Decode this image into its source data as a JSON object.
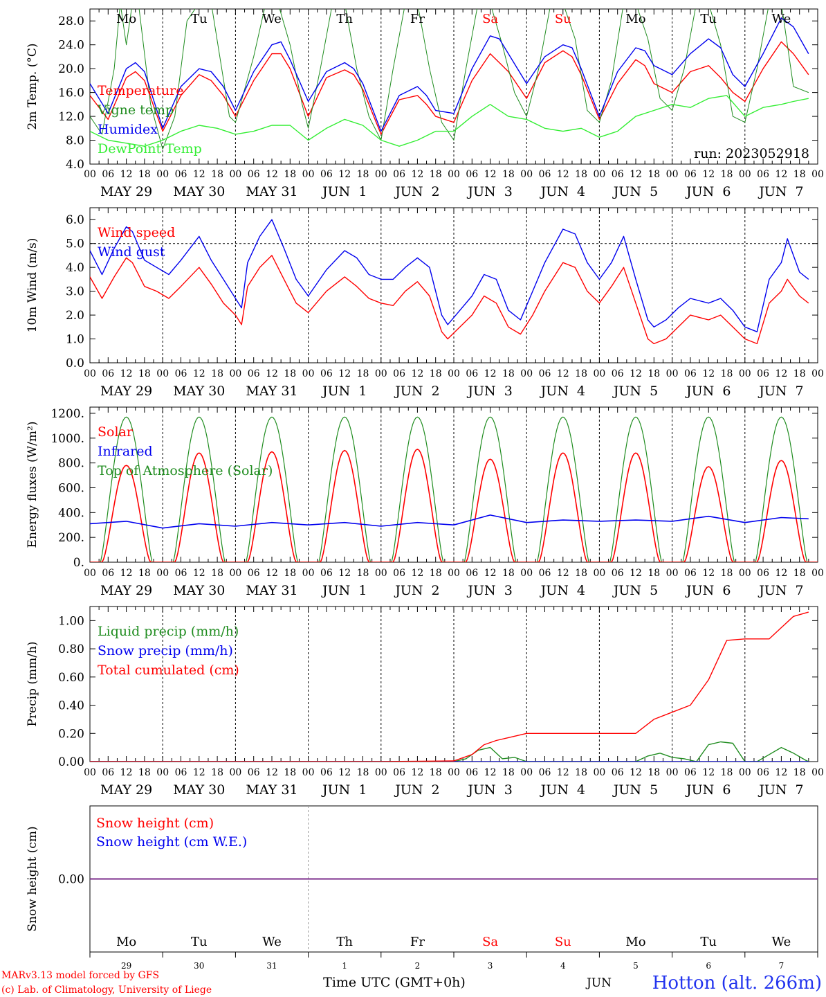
{
  "run_label": "run: 2023052918",
  "x_ticks": [
    "00",
    "06",
    "12",
    "18"
  ],
  "x_final_tick": "00",
  "date_labels": [
    "MAY 29",
    "MAY 30",
    "MAY 31",
    "JUN  1",
    "JUN  2",
    "JUN  3",
    "JUN  4",
    "JUN  5",
    "JUN  6",
    "JUN  7"
  ],
  "day_labels": [
    "Mo",
    "Tu",
    "We",
    "Th",
    "Fr",
    "Sa",
    "Su",
    "Mo",
    "Tu",
    "We"
  ],
  "weekend_days": [
    5,
    6
  ],
  "bottom_day_numbers": [
    "29",
    "30",
    "31",
    "1",
    "2",
    "3",
    "4",
    "5",
    "6",
    "7"
  ],
  "bottom_month": "JUN",
  "xlabel": "Time UTC (GMT+0h)",
  "credit": [
    "MARv3.13 model forced by GFS",
    "(c) Lab. of Climatology, University of Liege"
  ],
  "station": "Hotton (alt. 266m)",
  "colors": {
    "red": "#ff0000",
    "green": "#1f8c1f",
    "blue": "#0000ee",
    "lightgreen": "#33ee33",
    "purple": "#7a2a8a",
    "weekend": "#ff0000"
  },
  "chart_data": [
    {
      "id": "temperature",
      "type": "line",
      "ylabel": "2m Temp. (°C)",
      "ylim": [
        4,
        30
      ],
      "yticks": [
        "4.0",
        "8.0",
        "12.0",
        "16.0",
        "20.0",
        "24.0",
        "28.0"
      ],
      "ytick_values": [
        4,
        8,
        12,
        16,
        20,
        24,
        28
      ],
      "x_unit": "hours since MAY 29 00 UTC",
      "series": [
        {
          "name": "Temperature",
          "color": "red",
          "x": [
            0,
            6,
            12,
            15,
            18,
            24,
            30,
            36,
            40,
            44,
            48,
            54,
            60,
            63,
            66,
            72,
            78,
            84,
            87,
            90,
            96,
            102,
            108,
            111,
            114,
            120,
            126,
            132,
            135,
            138,
            144,
            150,
            156,
            159,
            162,
            168,
            174,
            180,
            183,
            186,
            192,
            198,
            204,
            208,
            212,
            216,
            222,
            228,
            232,
            237
          ],
          "y": [
            15.5,
            11.5,
            18.5,
            19.5,
            18.0,
            9.5,
            15.5,
            19.0,
            18.0,
            15.5,
            12.0,
            18.0,
            22.5,
            22.5,
            20.0,
            12.0,
            18.5,
            19.8,
            19.0,
            16.5,
            9.0,
            14.8,
            15.5,
            14.0,
            12.0,
            11.0,
            18.0,
            22.5,
            21.0,
            19.5,
            15.0,
            21.0,
            23.0,
            22.0,
            19.0,
            11.5,
            17.5,
            21.5,
            20.5,
            17.5,
            16.0,
            19.5,
            20.5,
            18.5,
            16.0,
            14.5,
            20.0,
            24.5,
            22.5,
            19.0
          ]
        },
        {
          "name": "Vigne temp",
          "color": "green",
          "x": [
            0,
            4,
            8,
            10,
            12,
            14,
            16,
            20,
            24,
            28,
            32,
            36,
            40,
            46,
            48,
            54,
            58,
            62,
            66,
            70,
            72,
            76,
            80,
            84,
            88,
            92,
            96,
            100,
            104,
            108,
            112,
            116,
            120,
            124,
            128,
            132,
            136,
            140,
            144,
            148,
            152,
            156,
            160,
            164,
            168,
            172,
            176,
            180,
            184,
            188,
            192,
            196,
            200,
            204,
            208,
            212,
            216,
            220,
            224,
            228,
            232,
            237
          ],
          "y": [
            12,
            9,
            20,
            31,
            24,
            31,
            31,
            14,
            6.5,
            12,
            28,
            31,
            31,
            12,
            11,
            22,
            31,
            31,
            24,
            14,
            10,
            20,
            31,
            31,
            20,
            12,
            8,
            20,
            31,
            31,
            20,
            11,
            8,
            20,
            31,
            31,
            24,
            16,
            12,
            20,
            31,
            31,
            25,
            13,
            11,
            18,
            31,
            31,
            25,
            15,
            13,
            20,
            31,
            31,
            24,
            12,
            11,
            20,
            31,
            31,
            17,
            16
          ]
        },
        {
          "name": "Humidex",
          "color": "blue",
          "x": [
            0,
            6,
            12,
            15,
            18,
            24,
            30,
            36,
            40,
            44,
            48,
            54,
            60,
            63,
            66,
            72,
            78,
            84,
            87,
            90,
            96,
            102,
            108,
            111,
            114,
            120,
            126,
            132,
            135,
            138,
            144,
            150,
            156,
            159,
            162,
            168,
            174,
            180,
            183,
            186,
            192,
            198,
            204,
            208,
            212,
            216,
            222,
            228,
            232,
            237
          ],
          "y": [
            17.5,
            12.5,
            20.0,
            21.0,
            19.5,
            10.0,
            17.0,
            20.0,
            19.5,
            17.0,
            13.0,
            19.5,
            24.0,
            24.5,
            21.5,
            14.5,
            19.5,
            21.0,
            20.0,
            17.5,
            9.5,
            15.5,
            17.0,
            15.5,
            13.0,
            12.5,
            20.0,
            25.5,
            25.0,
            22.5,
            17.5,
            22.0,
            24.0,
            23.5,
            20.0,
            12.0,
            19.5,
            23.5,
            23.0,
            20.5,
            19.0,
            22.5,
            25.0,
            23.5,
            19.0,
            17.0,
            22.5,
            28.5,
            27.0,
            22.5
          ]
        },
        {
          "name": "DewPoint Temp",
          "color": "lightgreen",
          "x": [
            0,
            6,
            12,
            18,
            24,
            30,
            36,
            42,
            48,
            54,
            60,
            66,
            72,
            78,
            84,
            90,
            96,
            102,
            108,
            114,
            120,
            126,
            132,
            138,
            144,
            150,
            156,
            162,
            168,
            174,
            180,
            186,
            192,
            198,
            204,
            210,
            216,
            222,
            228,
            232,
            237
          ],
          "y": [
            9.5,
            8.0,
            7.5,
            7.0,
            8.0,
            9.5,
            10.5,
            10.0,
            9.0,
            9.5,
            10.5,
            10.5,
            8.0,
            10.0,
            11.5,
            10.5,
            8.0,
            7.0,
            8.0,
            9.5,
            9.5,
            12.0,
            14.0,
            12.0,
            11.5,
            10.0,
            9.5,
            10.0,
            8.5,
            9.5,
            12.0,
            13.0,
            14.0,
            13.5,
            15.0,
            15.5,
            12.0,
            13.5,
            14.0,
            14.5,
            15.0
          ]
        }
      ]
    },
    {
      "id": "wind",
      "type": "line",
      "ylabel": "10m Wind (m/s)",
      "ylim": [
        0,
        6.5
      ],
      "yticks": [
        "0.0",
        "1.0",
        "2.0",
        "3.0",
        "4.0",
        "5.0",
        "6.0"
      ],
      "ytick_values": [
        0,
        1,
        2,
        3,
        4,
        5,
        6
      ],
      "reference_line": 5.0,
      "x_unit": "hours since MAY 29 00 UTC",
      "series": [
        {
          "name": "Wind speed",
          "color": "red",
          "x": [
            0,
            4,
            8,
            12,
            14,
            18,
            22,
            26,
            30,
            36,
            40,
            44,
            48,
            50,
            52,
            56,
            60,
            64,
            68,
            72,
            78,
            84,
            88,
            92,
            96,
            100,
            104,
            108,
            112,
            116,
            118,
            122,
            126,
            130,
            134,
            138,
            142,
            146,
            150,
            156,
            160,
            164,
            168,
            172,
            176,
            180,
            184,
            186,
            190,
            194,
            198,
            204,
            208,
            212,
            216,
            220,
            224,
            228,
            230,
            234,
            237
          ],
          "y": [
            3.6,
            2.7,
            3.6,
            4.4,
            4.2,
            3.2,
            3.0,
            2.7,
            3.2,
            4.0,
            3.3,
            2.5,
            2.0,
            1.6,
            3.2,
            4.0,
            4.5,
            3.5,
            2.5,
            2.1,
            3.0,
            3.6,
            3.2,
            2.7,
            2.5,
            2.4,
            3.0,
            3.4,
            2.8,
            1.3,
            1.0,
            1.5,
            2.0,
            2.8,
            2.5,
            1.5,
            1.2,
            2.0,
            3.0,
            4.2,
            4.0,
            3.0,
            2.5,
            3.2,
            4.0,
            2.5,
            1.0,
            0.8,
            1.0,
            1.5,
            2.0,
            1.8,
            2.0,
            1.5,
            1.0,
            0.8,
            2.5,
            3.0,
            3.5,
            2.8,
            2.5
          ]
        },
        {
          "name": "Wind gust",
          "color": "blue",
          "x": [
            0,
            4,
            8,
            12,
            14,
            18,
            22,
            26,
            30,
            36,
            40,
            44,
            48,
            50,
            52,
            56,
            60,
            64,
            68,
            72,
            78,
            84,
            88,
            92,
            96,
            100,
            104,
            108,
            112,
            116,
            118,
            122,
            126,
            130,
            134,
            138,
            142,
            146,
            150,
            156,
            160,
            164,
            168,
            172,
            176,
            180,
            184,
            186,
            190,
            194,
            198,
            204,
            208,
            212,
            216,
            220,
            224,
            228,
            230,
            234,
            237
          ],
          "y": [
            4.7,
            3.7,
            4.8,
            5.7,
            5.5,
            4.3,
            4.0,
            3.7,
            4.3,
            5.3,
            4.3,
            3.5,
            2.7,
            2.3,
            4.2,
            5.3,
            6.0,
            4.8,
            3.5,
            2.8,
            3.9,
            4.7,
            4.4,
            3.7,
            3.5,
            3.5,
            4.0,
            4.4,
            4.0,
            2.0,
            1.6,
            2.2,
            2.8,
            3.7,
            3.5,
            2.2,
            1.8,
            3.0,
            4.2,
            5.6,
            5.4,
            4.2,
            3.5,
            4.2,
            5.3,
            3.5,
            1.8,
            1.5,
            1.8,
            2.3,
            2.7,
            2.5,
            2.7,
            2.2,
            1.5,
            1.3,
            3.5,
            4.2,
            5.2,
            3.8,
            3.5
          ]
        }
      ]
    },
    {
      "id": "energy",
      "type": "line",
      "ylabel": "Energy fluxes (W/m²)",
      "ylim": [
        0,
        1250
      ],
      "yticks": [
        "0.",
        "200.",
        "400.",
        "600.",
        "800.",
        "1000.",
        "1200."
      ],
      "ytick_values": [
        0,
        200,
        400,
        600,
        800,
        1000,
        1200
      ],
      "x_unit": "hours since MAY 29 00 UTC",
      "daily_peaks": {
        "Solar": [
          780,
          880,
          890,
          900,
          910,
          830,
          880,
          880,
          770,
          820
        ],
        "Top of Atmosphere (Solar)": [
          1170,
          1170,
          1170,
          1170,
          1170,
          1170,
          1170,
          1170,
          1170,
          1170
        ]
      },
      "series": [
        {
          "name": "Solar",
          "color": "red"
        },
        {
          "name": "Infrared",
          "color": "blue",
          "x": [
            0,
            12,
            24,
            36,
            48,
            60,
            72,
            84,
            96,
            108,
            120,
            132,
            144,
            156,
            168,
            180,
            192,
            204,
            216,
            228,
            237
          ],
          "y": [
            310,
            330,
            275,
            310,
            290,
            320,
            300,
            320,
            290,
            320,
            300,
            380,
            320,
            340,
            330,
            340,
            330,
            370,
            320,
            360,
            350
          ]
        },
        {
          "name": "Top of Atmosphere (Solar)",
          "color": "green"
        }
      ]
    },
    {
      "id": "precip",
      "type": "line",
      "ylabel": "Precip (mm/h)",
      "ylim": [
        0,
        1.1
      ],
      "yticks": [
        "0.00",
        "0.20",
        "0.40",
        "0.60",
        "0.80",
        "1.00"
      ],
      "ytick_values": [
        0,
        0.2,
        0.4,
        0.6,
        0.8,
        1.0
      ],
      "x_unit": "hours since MAY 29 00 UTC",
      "series": [
        {
          "name": "Liquid precip (mm/h)",
          "color": "green",
          "x": [
            0,
            120,
            124,
            128,
            132,
            136,
            140,
            144,
            180,
            184,
            188,
            192,
            196,
            200,
            204,
            208,
            212,
            216,
            220,
            224,
            228,
            232,
            236,
            237
          ],
          "y": [
            0,
            0,
            0.02,
            0.08,
            0.1,
            0.02,
            0.03,
            0,
            0,
            0.04,
            0.06,
            0.03,
            0.02,
            0,
            0.12,
            0.14,
            0.13,
            0,
            0,
            0.05,
            0.1,
            0.06,
            0.01,
            0
          ]
        },
        {
          "name": "Snow precip (mm/h)",
          "color": "blue",
          "x": [
            0,
            237
          ],
          "y": [
            0,
            0
          ]
        },
        {
          "name": "Total cumulated (cm)",
          "color": "red",
          "x": [
            0,
            96,
            120,
            126,
            130,
            134,
            138,
            144,
            168,
            180,
            186,
            192,
            198,
            204,
            210,
            216,
            220,
            224,
            228,
            232,
            237
          ],
          "y": [
            0,
            0,
            0.005,
            0.05,
            0.12,
            0.15,
            0.17,
            0.2,
            0.2,
            0.2,
            0.3,
            0.35,
            0.4,
            0.58,
            0.86,
            0.87,
            0.87,
            0.87,
            0.95,
            1.03,
            1.06
          ]
        }
      ]
    },
    {
      "id": "snow",
      "type": "line",
      "ylabel": "Snow height (cm)",
      "ylim": [
        -1,
        1
      ],
      "yticks": [
        "0.00"
      ],
      "ytick_values": [
        0
      ],
      "x_unit": "hours since MAY 29 00 UTC",
      "series": [
        {
          "name": "Snow height (cm)",
          "color": "red",
          "x": [
            0,
            237
          ],
          "y": [
            0,
            0
          ]
        },
        {
          "name": "Snow height (cm W.E.)",
          "color": "blue",
          "x": [
            0,
            237
          ],
          "y": [
            0,
            0
          ]
        }
      ]
    }
  ]
}
